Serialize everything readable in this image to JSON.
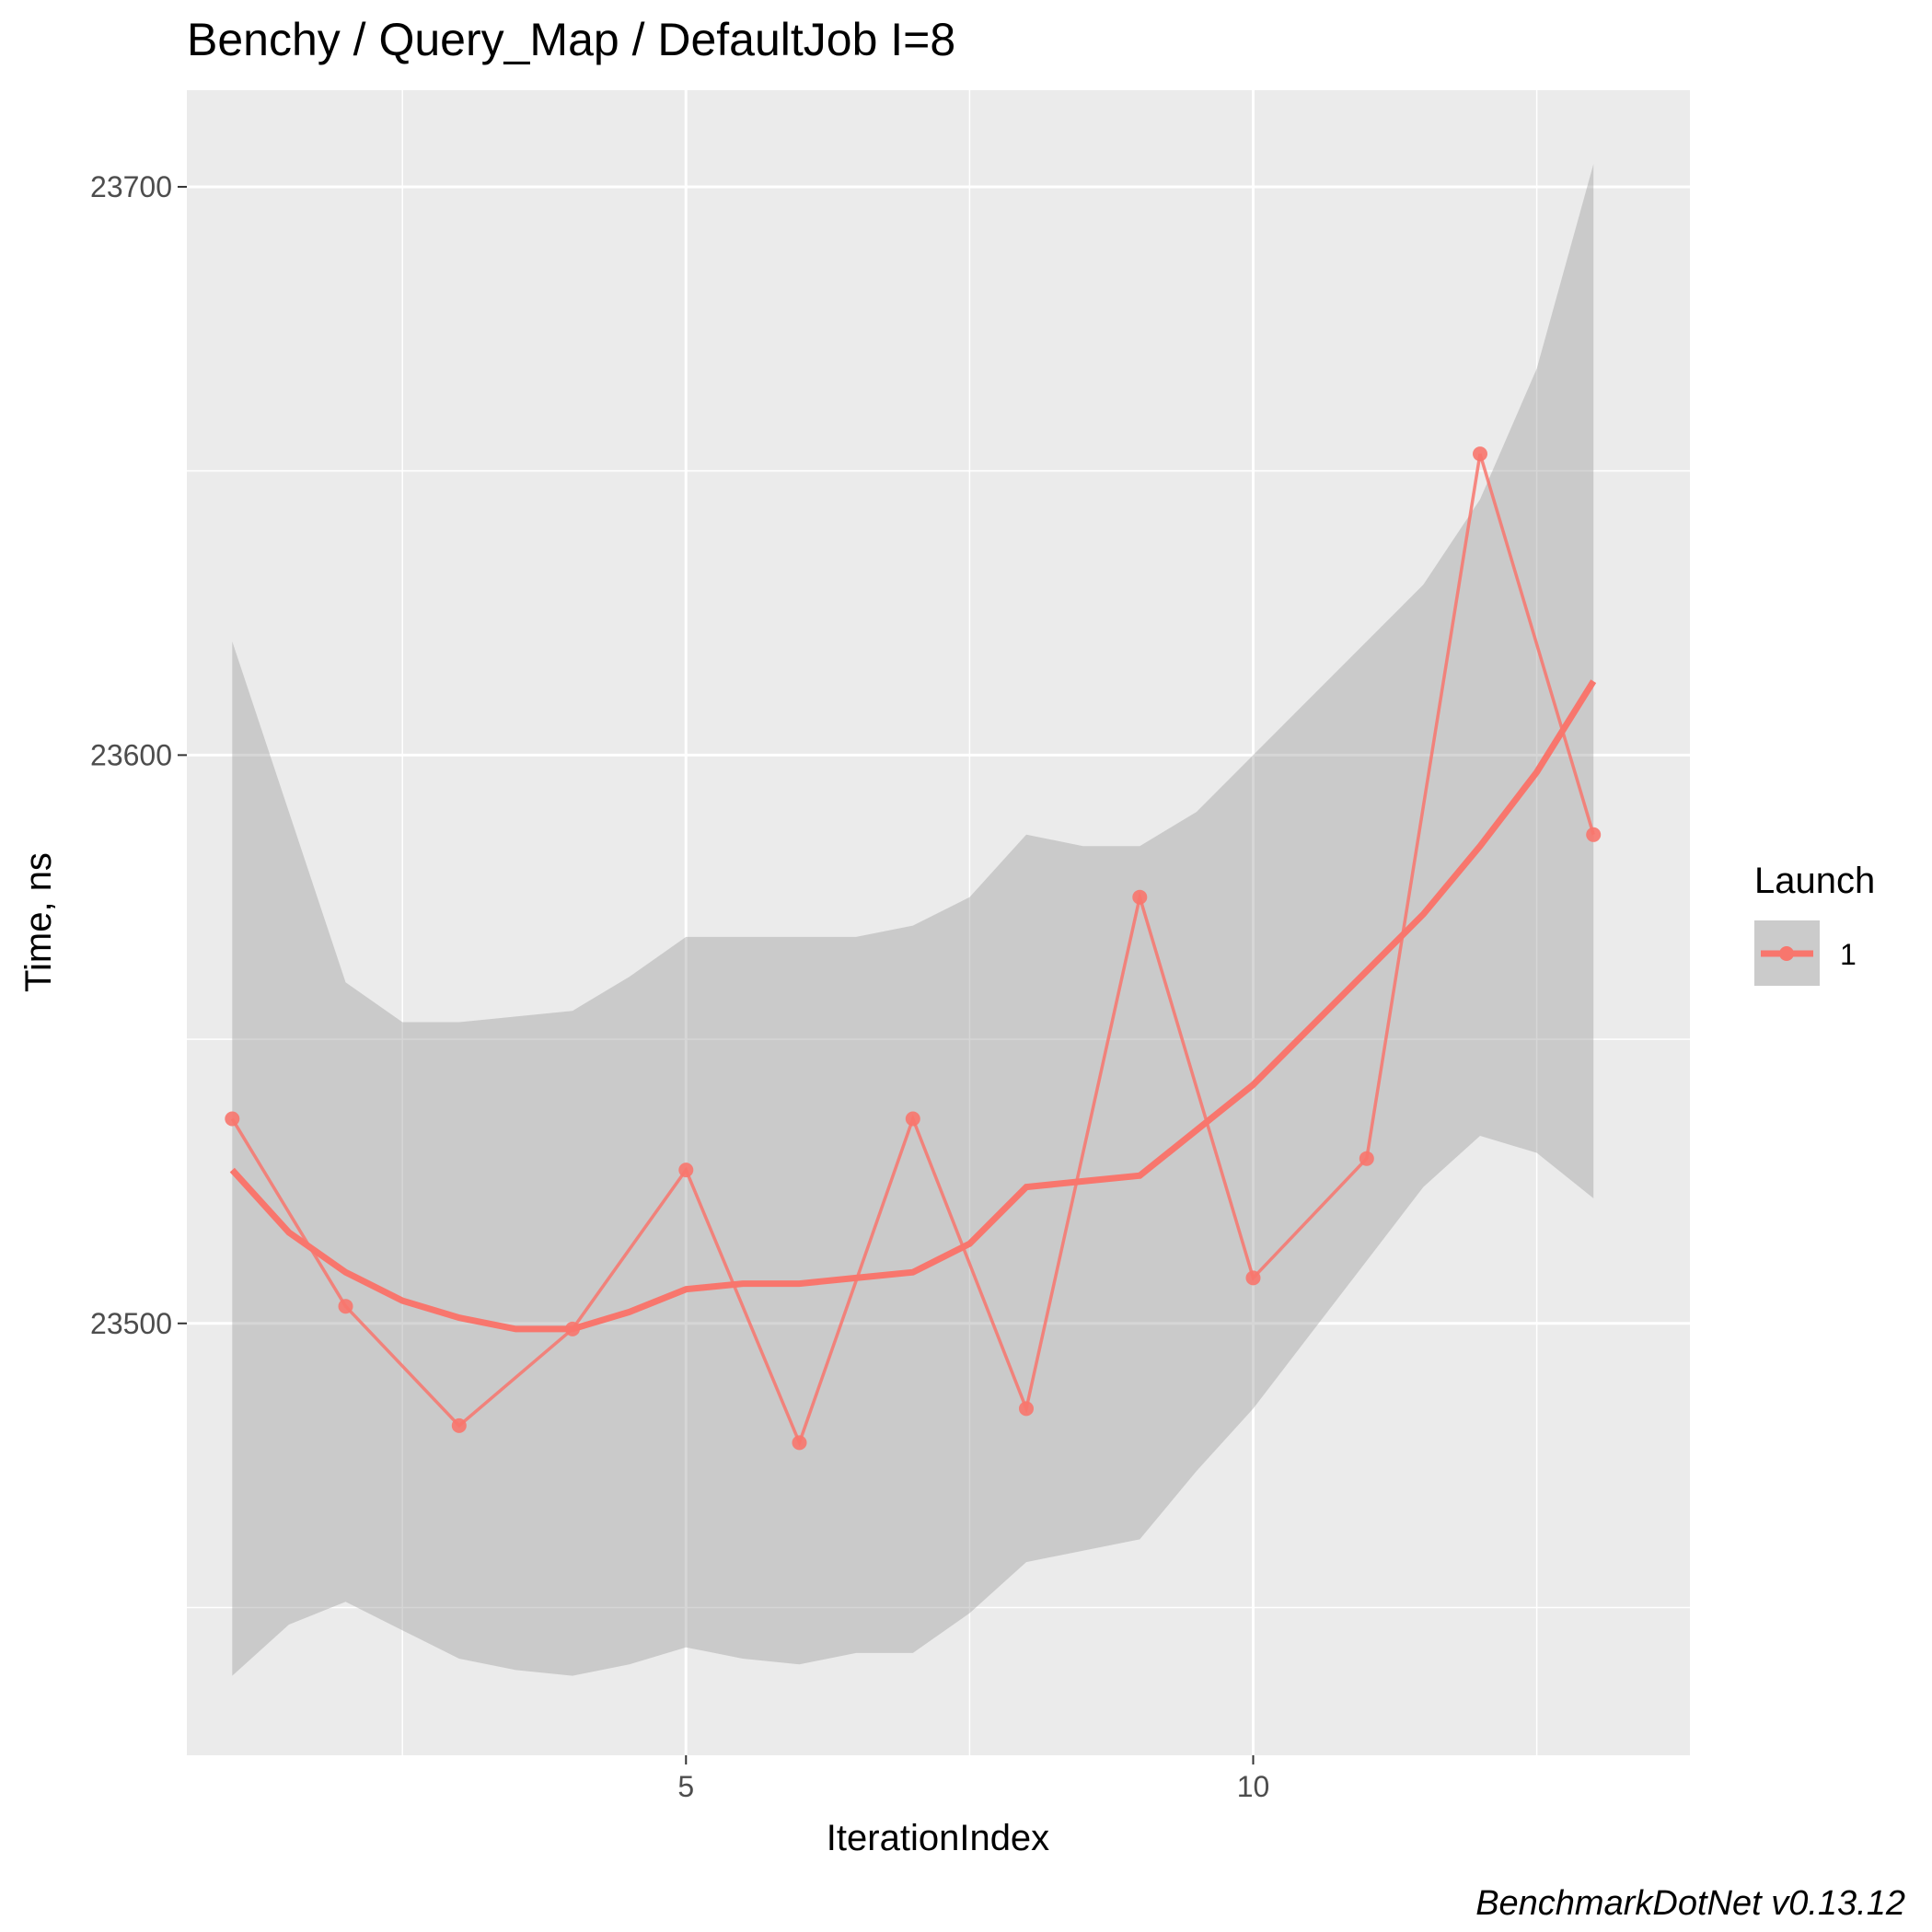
{
  "chart_data": {
    "type": "line",
    "title": "Benchy / Query_Map / DefaultJob I=8",
    "xlabel": "IterationIndex",
    "ylabel": "Time, ns",
    "xlim": [
      0.6,
      13.85
    ],
    "ylim": [
      23424,
      23717
    ],
    "x_ticks": [
      5,
      10
    ],
    "x_tick_labels": [
      "5",
      "10"
    ],
    "y_ticks": [
      23500,
      23600,
      23700
    ],
    "y_tick_labels": [
      "23500",
      "23600",
      "23700"
    ],
    "grid": true,
    "legend": {
      "title": "Launch",
      "position": "right",
      "entries": [
        "1"
      ]
    },
    "series": [
      {
        "name": "1",
        "color": "#f8766d",
        "x": [
          1,
          2,
          3,
          4,
          5,
          6,
          7,
          8,
          9,
          10,
          11,
          12,
          13
        ],
        "y": [
          23536,
          23503,
          23482,
          23499,
          23527,
          23479,
          23536,
          23485,
          23575,
          23508,
          23529,
          23653,
          23586
        ]
      }
    ],
    "smooth": {
      "x": [
        1,
        1.5,
        2,
        2.5,
        3,
        3.5,
        4,
        4.5,
        5,
        5.5,
        6,
        6.5,
        7,
        7.5,
        8,
        8.5,
        9,
        9.5,
        10,
        10.5,
        11,
        11.5,
        12,
        12.5,
        13
      ],
      "y": [
        23527,
        23516,
        23509,
        23504,
        23501,
        23499,
        23499,
        23502,
        23506,
        23507,
        23507,
        23508,
        23509,
        23514,
        23524,
        23525,
        23526,
        23534,
        23542,
        23552,
        23562,
        23572,
        23584,
        23597,
        23613
      ],
      "ci_upper": [
        23620,
        23590,
        23560,
        23553,
        23553,
        23554,
        23555,
        23561,
        23568,
        23568,
        23568,
        23568,
        23570,
        23575,
        23586,
        23584,
        23584,
        23590,
        23600,
        23610,
        23620,
        23630,
        23645,
        23668,
        23704
      ],
      "ci_lower": [
        23438,
        23447,
        23451,
        23446,
        23441,
        23439,
        23438,
        23440,
        23443,
        23441,
        23440,
        23442,
        23442,
        23449,
        23458,
        23460,
        23462,
        23474,
        23485,
        23498,
        23511,
        23524,
        23533,
        23530,
        23522
      ]
    },
    "caption": "BenchmarkDotNet v0.13.12"
  }
}
